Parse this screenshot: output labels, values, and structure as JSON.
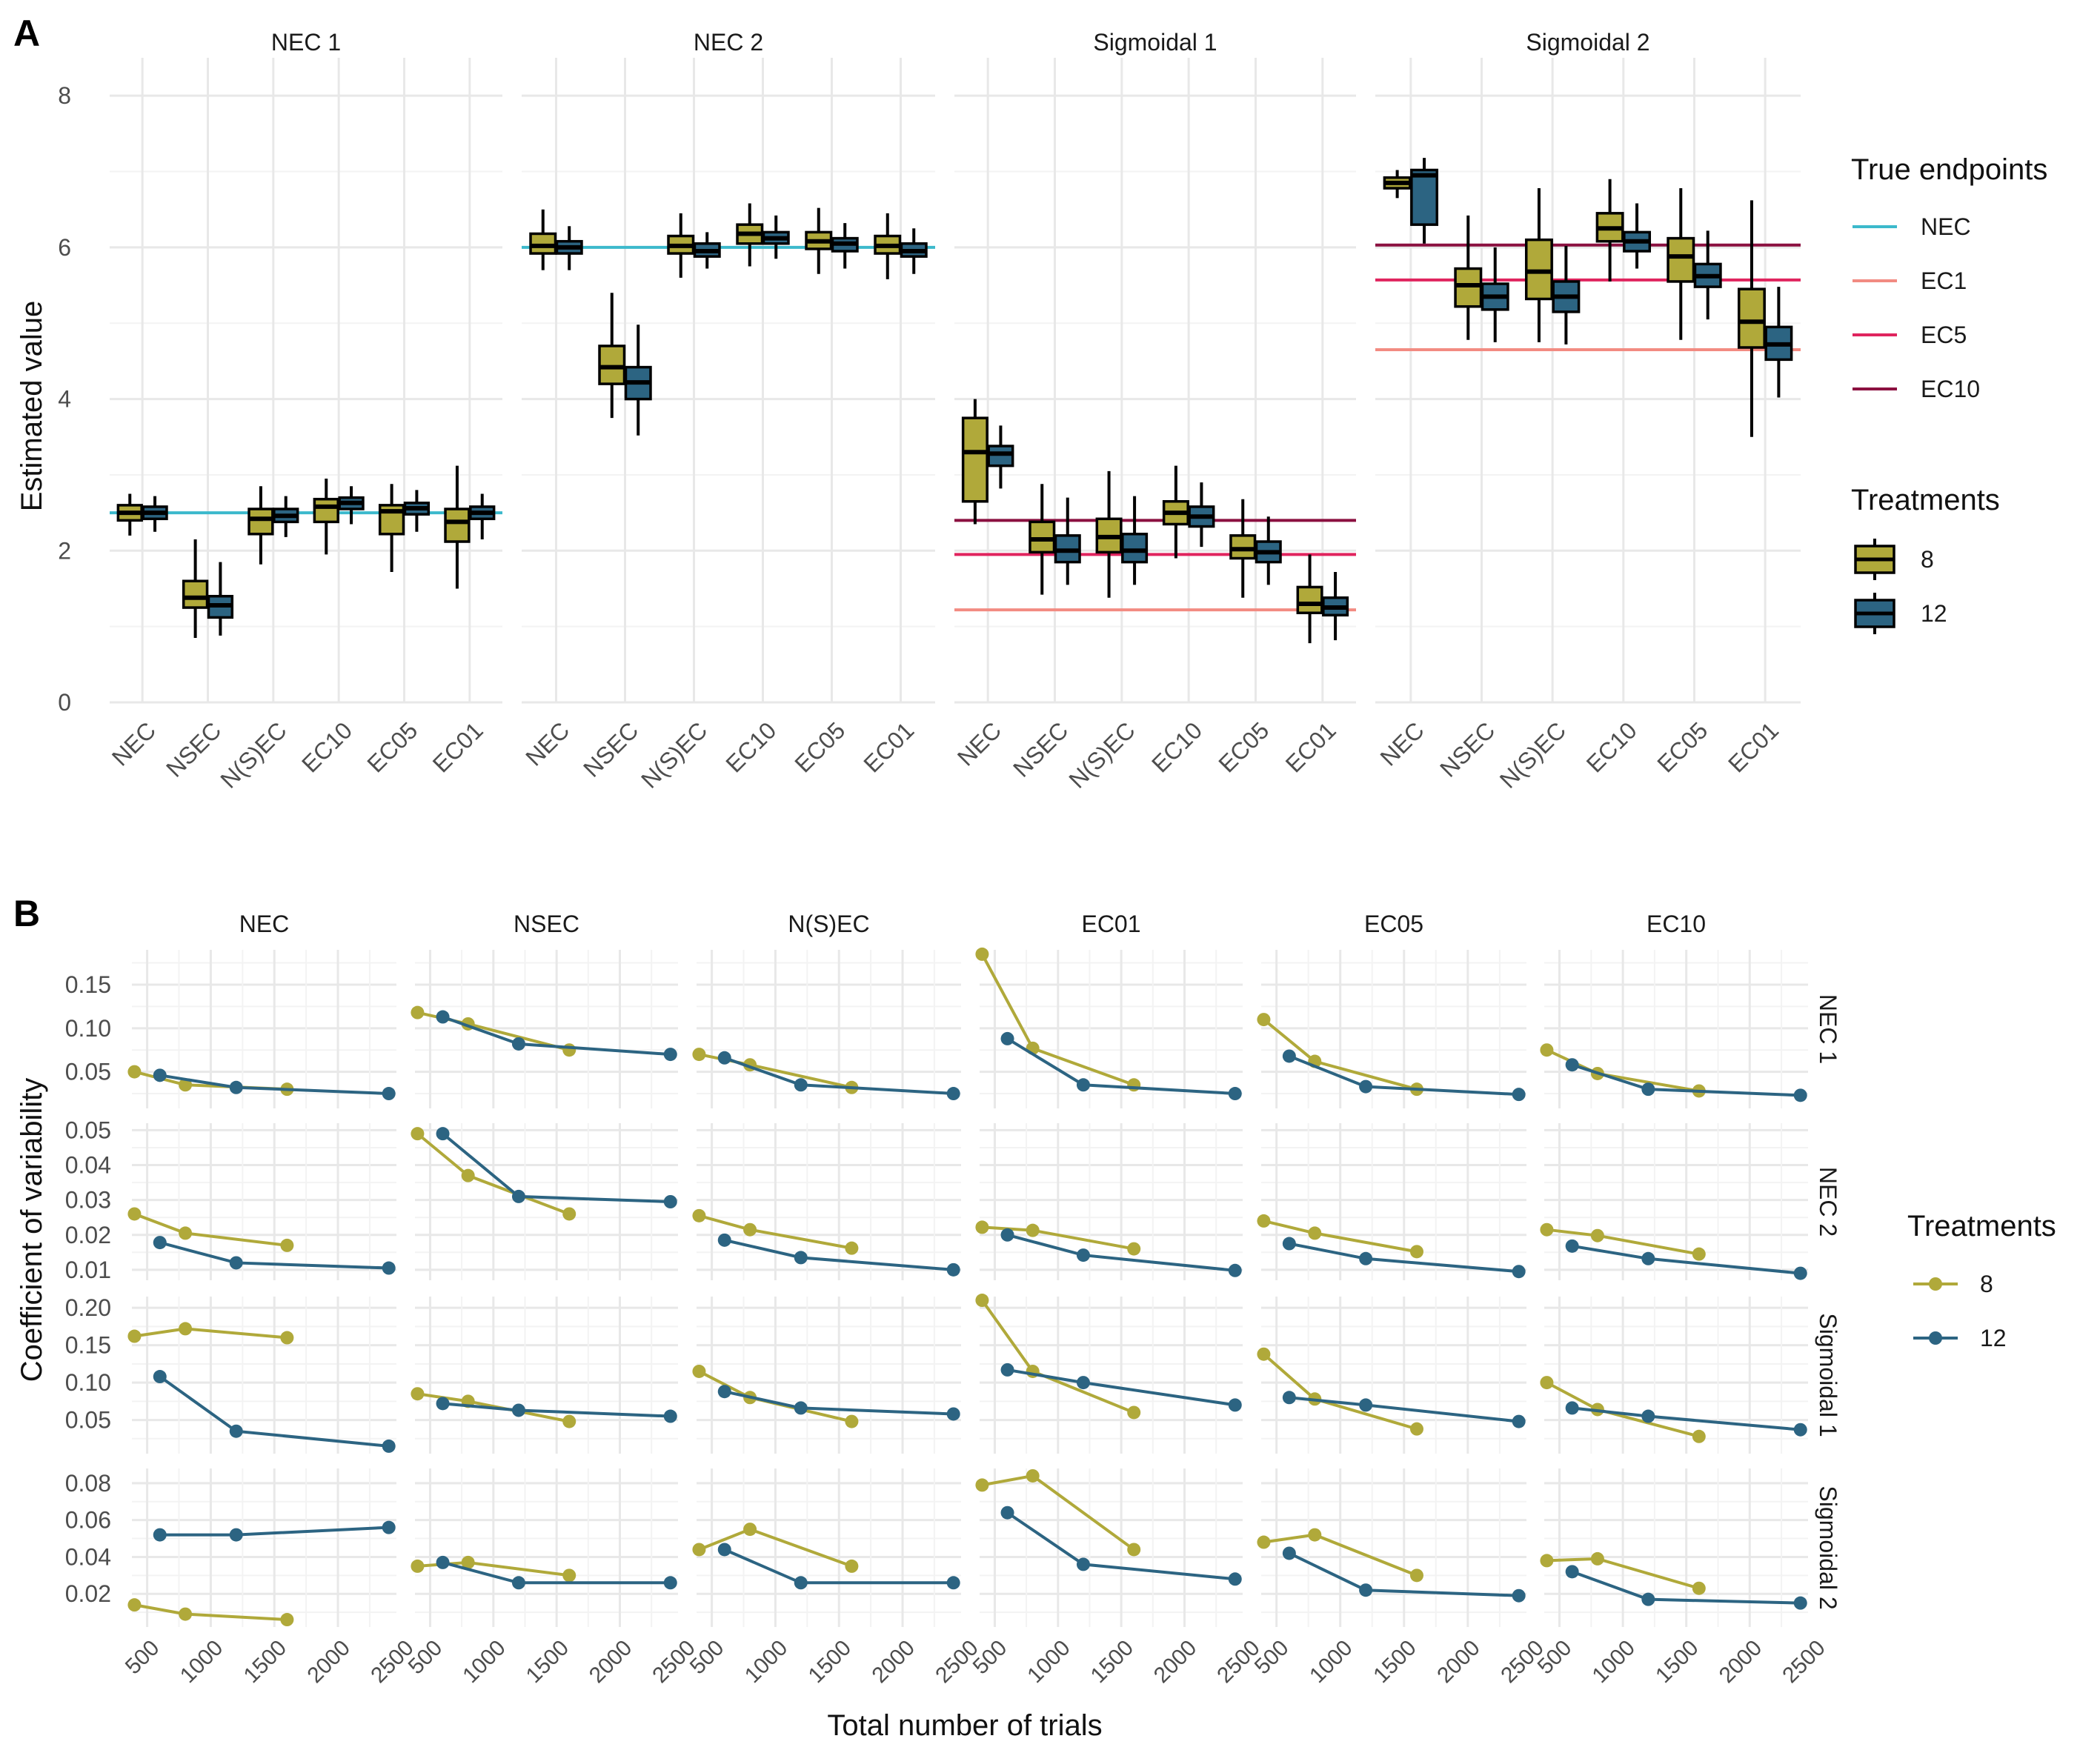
{
  "panel_a": {
    "label": "A",
    "ylabel": "Estimated value",
    "ylim": [
      0,
      8.5
    ],
    "yticks": [
      0,
      2,
      4,
      6,
      8
    ],
    "categories": [
      "NEC",
      "NSEC",
      "N(S)EC",
      "EC10",
      "EC05",
      "EC01"
    ],
    "facets": [
      {
        "title": "NEC 1",
        "true_lines": [
          {
            "endpoint": "NEC",
            "value": 2.5
          }
        ],
        "boxes": {
          "8": [
            {
              "min": 2.2,
              "q1": 2.4,
              "median": 2.5,
              "q3": 2.6,
              "max": 2.75
            },
            {
              "min": 0.85,
              "q1": 1.25,
              "median": 1.38,
              "q3": 1.6,
              "max": 2.15
            },
            {
              "min": 1.82,
              "q1": 2.22,
              "median": 2.42,
              "q3": 2.55,
              "max": 2.85
            },
            {
              "min": 1.95,
              "q1": 2.38,
              "median": 2.58,
              "q3": 2.68,
              "max": 2.95
            },
            {
              "min": 1.72,
              "q1": 2.22,
              "median": 2.52,
              "q3": 2.6,
              "max": 2.88
            },
            {
              "min": 1.5,
              "q1": 2.12,
              "median": 2.38,
              "q3": 2.55,
              "max": 3.12
            }
          ],
          "12": [
            {
              "min": 2.25,
              "q1": 2.42,
              "median": 2.5,
              "q3": 2.58,
              "max": 2.72
            },
            {
              "min": 0.88,
              "q1": 1.12,
              "median": 1.28,
              "q3": 1.4,
              "max": 1.85
            },
            {
              "min": 2.18,
              "q1": 2.38,
              "median": 2.46,
              "q3": 2.55,
              "max": 2.72
            },
            {
              "min": 2.35,
              "q1": 2.55,
              "median": 2.63,
              "q3": 2.7,
              "max": 2.85
            },
            {
              "min": 2.25,
              "q1": 2.48,
              "median": 2.56,
              "q3": 2.63,
              "max": 2.8
            },
            {
              "min": 2.15,
              "q1": 2.42,
              "median": 2.5,
              "q3": 2.58,
              "max": 2.75
            }
          ]
        }
      },
      {
        "title": "NEC 2",
        "true_lines": [
          {
            "endpoint": "NEC",
            "value": 6.0
          }
        ],
        "boxes": {
          "8": [
            {
              "min": 5.7,
              "q1": 5.92,
              "median": 6.02,
              "q3": 6.18,
              "max": 6.5
            },
            {
              "min": 3.75,
              "q1": 4.2,
              "median": 4.42,
              "q3": 4.7,
              "max": 5.4
            },
            {
              "min": 5.6,
              "q1": 5.92,
              "median": 6.02,
              "q3": 6.15,
              "max": 6.45
            },
            {
              "min": 5.75,
              "q1": 6.05,
              "median": 6.18,
              "q3": 6.3,
              "max": 6.58
            },
            {
              "min": 5.65,
              "q1": 5.98,
              "median": 6.08,
              "q3": 6.2,
              "max": 6.52
            },
            {
              "min": 5.58,
              "q1": 5.92,
              "median": 6.02,
              "q3": 6.15,
              "max": 6.45
            }
          ],
          "12": [
            {
              "min": 5.7,
              "q1": 5.92,
              "median": 6.0,
              "q3": 6.08,
              "max": 6.28
            },
            {
              "min": 3.52,
              "q1": 4.0,
              "median": 4.22,
              "q3": 4.42,
              "max": 4.98
            },
            {
              "min": 5.72,
              "q1": 5.88,
              "median": 5.95,
              "q3": 6.05,
              "max": 6.2
            },
            {
              "min": 5.85,
              "q1": 6.05,
              "median": 6.12,
              "q3": 6.2,
              "max": 6.42
            },
            {
              "min": 5.72,
              "q1": 5.95,
              "median": 6.05,
              "q3": 6.12,
              "max": 6.32
            },
            {
              "min": 5.65,
              "q1": 5.88,
              "median": 5.95,
              "q3": 6.05,
              "max": 6.25
            }
          ]
        }
      },
      {
        "title": "Sigmoidal 1",
        "true_lines": [
          {
            "endpoint": "EC10",
            "value": 2.4
          },
          {
            "endpoint": "EC5",
            "value": 1.95
          },
          {
            "endpoint": "EC1",
            "value": 1.22
          }
        ],
        "boxes": {
          "8": [
            {
              "min": 2.35,
              "q1": 2.65,
              "median": 3.3,
              "q3": 3.75,
              "max": 4.0
            },
            {
              "min": 1.42,
              "q1": 1.98,
              "median": 2.15,
              "q3": 2.38,
              "max": 2.88
            },
            {
              "min": 1.38,
              "q1": 1.98,
              "median": 2.18,
              "q3": 2.42,
              "max": 3.05
            },
            {
              "min": 1.9,
              "q1": 2.35,
              "median": 2.5,
              "q3": 2.65,
              "max": 3.12
            },
            {
              "min": 1.38,
              "q1": 1.9,
              "median": 2.02,
              "q3": 2.2,
              "max": 2.68
            },
            {
              "min": 0.78,
              "q1": 1.18,
              "median": 1.3,
              "q3": 1.52,
              "max": 1.95
            }
          ],
          "12": [
            {
              "min": 2.82,
              "q1": 3.12,
              "median": 3.28,
              "q3": 3.38,
              "max": 3.65
            },
            {
              "min": 1.55,
              "q1": 1.85,
              "median": 2.0,
              "q3": 2.2,
              "max": 2.7
            },
            {
              "min": 1.55,
              "q1": 1.85,
              "median": 2.0,
              "q3": 2.22,
              "max": 2.72
            },
            {
              "min": 2.05,
              "q1": 2.32,
              "median": 2.45,
              "q3": 2.58,
              "max": 2.9
            },
            {
              "min": 1.55,
              "q1": 1.85,
              "median": 1.98,
              "q3": 2.12,
              "max": 2.45
            },
            {
              "min": 0.82,
              "q1": 1.15,
              "median": 1.25,
              "q3": 1.38,
              "max": 1.72
            }
          ]
        }
      },
      {
        "title": "Sigmoidal 2",
        "true_lines": [
          {
            "endpoint": "EC10",
            "value": 6.03
          },
          {
            "endpoint": "EC5",
            "value": 5.57
          },
          {
            "endpoint": "EC1",
            "value": 4.65
          }
        ],
        "boxes": {
          "8": [
            {
              "min": 6.65,
              "q1": 6.78,
              "median": 6.85,
              "q3": 6.92,
              "max": 7.02
            },
            {
              "min": 4.78,
              "q1": 5.22,
              "median": 5.5,
              "q3": 5.72,
              "max": 6.42
            },
            {
              "min": 4.75,
              "q1": 5.32,
              "median": 5.68,
              "q3": 6.1,
              "max": 6.78
            },
            {
              "min": 5.55,
              "q1": 6.08,
              "median": 6.25,
              "q3": 6.45,
              "max": 6.9
            },
            {
              "min": 4.78,
              "q1": 5.55,
              "median": 5.88,
              "q3": 6.12,
              "max": 6.78
            },
            {
              "min": 3.5,
              "q1": 4.68,
              "median": 5.02,
              "q3": 5.45,
              "max": 6.62
            }
          ],
          "12": [
            {
              "min": 6.05,
              "q1": 6.3,
              "median": 6.95,
              "q3": 7.02,
              "max": 7.18
            },
            {
              "min": 4.75,
              "q1": 5.18,
              "median": 5.35,
              "q3": 5.52,
              "max": 6.0
            },
            {
              "min": 4.72,
              "q1": 5.15,
              "median": 5.35,
              "q3": 5.55,
              "max": 6.02
            },
            {
              "min": 5.72,
              "q1": 5.95,
              "median": 6.08,
              "q3": 6.2,
              "max": 6.58
            },
            {
              "min": 5.05,
              "q1": 5.48,
              "median": 5.62,
              "q3": 5.78,
              "max": 6.22
            },
            {
              "min": 4.02,
              "q1": 4.52,
              "median": 4.72,
              "q3": 4.95,
              "max": 5.48
            }
          ]
        }
      }
    ],
    "legend_endpoints": {
      "title": "True endpoints",
      "items": [
        {
          "label": "NEC",
          "color": "#3cb9cc"
        },
        {
          "label": "EC1",
          "color": "#f28b82"
        },
        {
          "label": "EC5",
          "color": "#e0245e"
        },
        {
          "label": "EC10",
          "color": "#8b1040"
        }
      ]
    },
    "legend_treatments": {
      "title": "Treatments",
      "items": [
        {
          "label": "8",
          "color": "#b0a93a"
        },
        {
          "label": "12",
          "color": "#2c6482"
        }
      ]
    }
  },
  "panel_b": {
    "label": "B",
    "xlabel": "Total number of trials",
    "ylabel": "Coefficient of variability",
    "xlim": [
      380,
      2460
    ],
    "xticks": [
      500,
      1000,
      1500,
      2000,
      2500
    ],
    "col_facets": [
      "NEC",
      "NSEC",
      "N(S)EC",
      "EC01",
      "EC05",
      "EC10"
    ],
    "row_facets": [
      {
        "title": "NEC 1",
        "ylim": [
          0.008,
          0.19
        ],
        "yticks": [
          0.05,
          0.1,
          0.15
        ],
        "yticklabels": [
          "0.05",
          "0.10",
          "0.15"
        ]
      },
      {
        "title": "NEC 2",
        "ylim": [
          0.007,
          0.052
        ],
        "yticks": [
          0.01,
          0.02,
          0.03,
          0.04,
          0.05
        ],
        "yticklabels": [
          "0.01",
          "0.02",
          "0.03",
          "0.04",
          "0.05"
        ]
      },
      {
        "title": "Sigmoidal 1",
        "ylim": [
          0.005,
          0.215
        ],
        "yticks": [
          0.05,
          0.1,
          0.15,
          0.2
        ],
        "yticklabels": [
          "0.05",
          "0.10",
          "0.15",
          "0.20"
        ]
      },
      {
        "title": "Sigmoidal 2",
        "ylim": [
          0.002,
          0.088
        ],
        "yticks": [
          0.02,
          0.04,
          0.06,
          0.08
        ],
        "yticklabels": [
          "0.02",
          "0.04",
          "0.06",
          "0.08"
        ]
      }
    ],
    "legend": {
      "title": "Treatments",
      "items": [
        {
          "label": "8",
          "color": "#b0a93a"
        },
        {
          "label": "12",
          "color": "#2c6482"
        }
      ]
    },
    "chart_data": {
      "type": "line",
      "series": [
        {
          "name": "8",
          "x": [
            400,
            800,
            1600
          ]
        },
        {
          "name": "12",
          "x": [
            600,
            1200,
            2400
          ]
        }
      ],
      "values": [
        [
          {
            "8": [
              0.05,
              0.035,
              0.03
            ],
            "12": [
              0.046,
              0.032,
              0.025
            ]
          },
          {
            "8": [
              0.118,
              0.105,
              0.075
            ],
            "12": [
              0.113,
              0.082,
              0.07
            ]
          },
          {
            "8": [
              0.07,
              0.058,
              0.032
            ],
            "12": [
              0.066,
              0.035,
              0.025
            ]
          },
          {
            "8": [
              0.185,
              0.077,
              0.035
            ],
            "12": [
              0.088,
              0.035,
              0.025
            ]
          },
          {
            "8": [
              0.11,
              0.062,
              0.03
            ],
            "12": [
              0.068,
              0.033,
              0.024
            ]
          },
          {
            "8": [
              0.075,
              0.048,
              0.028
            ],
            "12": [
              0.058,
              0.03,
              0.023
            ]
          }
        ],
        [
          {
            "8": [
              0.026,
              0.0205,
              0.017
            ],
            "12": [
              0.0178,
              0.012,
              0.0105
            ]
          },
          {
            "8": [
              0.049,
              0.037,
              0.026
            ],
            "12": [
              0.049,
              0.031,
              0.0295
            ]
          },
          {
            "8": [
              0.0255,
              0.0215,
              0.0162
            ],
            "12": [
              0.0185,
              0.0135,
              0.01
            ]
          },
          {
            "8": [
              0.0222,
              0.0213,
              0.016
            ],
            "12": [
              0.02,
              0.0142,
              0.0098
            ]
          },
          {
            "8": [
              0.024,
              0.0205,
              0.0152
            ],
            "12": [
              0.0175,
              0.0132,
              0.0095
            ]
          },
          {
            "8": [
              0.0215,
              0.0198,
              0.0145
            ],
            "12": [
              0.0168,
              0.0132,
              0.009
            ]
          }
        ],
        [
          {
            "8": [
              0.162,
              0.172,
              0.16
            ],
            "12": [
              0.108,
              0.035,
              0.015
            ]
          },
          {
            "8": [
              0.085,
              0.075,
              0.048
            ],
            "12": [
              0.072,
              0.063,
              0.055
            ]
          },
          {
            "8": [
              0.115,
              0.08,
              0.048
            ],
            "12": [
              0.088,
              0.066,
              0.058
            ]
          },
          {
            "8": [
              0.21,
              0.115,
              0.06
            ],
            "12": [
              0.117,
              0.1,
              0.07
            ]
          },
          {
            "8": [
              0.138,
              0.078,
              0.038
            ],
            "12": [
              0.08,
              0.07,
              0.048
            ]
          },
          {
            "8": [
              0.1,
              0.064,
              0.028
            ],
            "12": [
              0.066,
              0.055,
              0.037
            ]
          }
        ],
        [
          {
            "8": [
              0.014,
              0.009,
              0.006
            ],
            "12": [
              0.052,
              0.052,
              0.056
            ]
          },
          {
            "8": [
              0.035,
              0.037,
              0.03
            ],
            "12": [
              0.037,
              0.026,
              0.026
            ]
          },
          {
            "8": [
              0.044,
              0.055,
              0.035
            ],
            "12": [
              0.044,
              0.026,
              0.026
            ]
          },
          {
            "8": [
              0.079,
              0.084,
              0.044
            ],
            "12": [
              0.064,
              0.036,
              0.028
            ]
          },
          {
            "8": [
              0.048,
              0.052,
              0.03
            ],
            "12": [
              0.042,
              0.022,
              0.019
            ]
          },
          {
            "8": [
              0.038,
              0.039,
              0.023
            ],
            "12": [
              0.032,
              0.017,
              0.015
            ]
          }
        ]
      ]
    }
  }
}
